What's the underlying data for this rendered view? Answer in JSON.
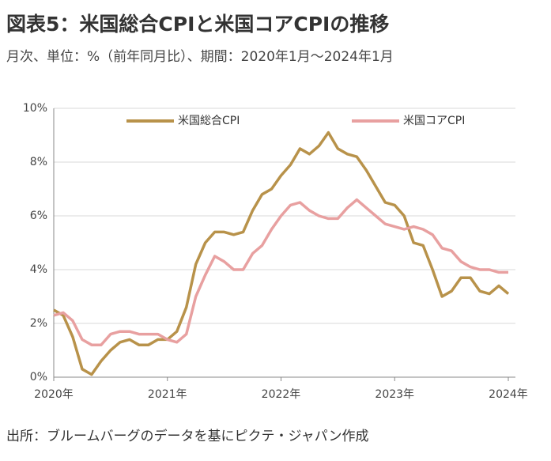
{
  "chart_data": {
    "type": "line",
    "title": "図表5：米国総合CPIと米国コアCPIの推移",
    "subtitle": "月次、単位：%（前年同月比）、期間：2020年1月～2024年1月",
    "source": "出所：ブルームバーグのデータを基にピクテ・ジャパン作成",
    "categories": [
      "2020年",
      null,
      null,
      null,
      null,
      null,
      null,
      null,
      null,
      null,
      null,
      null,
      "2021年",
      null,
      null,
      null,
      null,
      null,
      null,
      null,
      null,
      null,
      null,
      null,
      "2022年",
      null,
      null,
      null,
      null,
      null,
      null,
      null,
      null,
      null,
      null,
      null,
      "2023年",
      null,
      null,
      null,
      null,
      null,
      null,
      null,
      null,
      null,
      null,
      null,
      "2024年"
    ],
    "series": [
      {
        "name": "米国総合CPI",
        "color": "#b8924a",
        "values": [
          2.5,
          2.3,
          1.5,
          0.3,
          0.1,
          0.6,
          1.0,
          1.3,
          1.4,
          1.2,
          1.2,
          1.4,
          1.4,
          1.7,
          2.6,
          4.2,
          5.0,
          5.4,
          5.4,
          5.3,
          5.4,
          6.2,
          6.8,
          7.0,
          7.5,
          7.9,
          8.5,
          8.3,
          8.6,
          9.1,
          8.5,
          8.3,
          8.2,
          7.7,
          7.1,
          6.5,
          6.4,
          6.0,
          5.0,
          4.9,
          4.0,
          3.0,
          3.2,
          3.7,
          3.7,
          3.2,
          3.1,
          3.4,
          3.1
        ]
      },
      {
        "name": "米国コアCPI",
        "color": "#e8a0a0",
        "values": [
          2.3,
          2.4,
          2.1,
          1.4,
          1.2,
          1.2,
          1.6,
          1.7,
          1.7,
          1.6,
          1.6,
          1.6,
          1.4,
          1.3,
          1.6,
          3.0,
          3.8,
          4.5,
          4.3,
          4.0,
          4.0,
          4.6,
          4.9,
          5.5,
          6.0,
          6.4,
          6.5,
          6.2,
          6.0,
          5.9,
          5.9,
          6.3,
          6.6,
          6.3,
          6.0,
          5.7,
          5.6,
          5.5,
          5.6,
          5.5,
          5.3,
          4.8,
          4.7,
          4.3,
          4.1,
          4.0,
          4.0,
          3.9,
          3.9
        ]
      }
    ],
    "ylim": [
      0,
      10
    ],
    "yticks": [
      {
        "value": 0,
        "label": "0%"
      },
      {
        "value": 2,
        "label": "2%"
      },
      {
        "value": 4,
        "label": "4%"
      },
      {
        "value": 6,
        "label": "6%"
      },
      {
        "value": 8,
        "label": "8%"
      },
      {
        "value": 10,
        "label": "10%"
      }
    ],
    "grid": true,
    "legend": "top"
  }
}
